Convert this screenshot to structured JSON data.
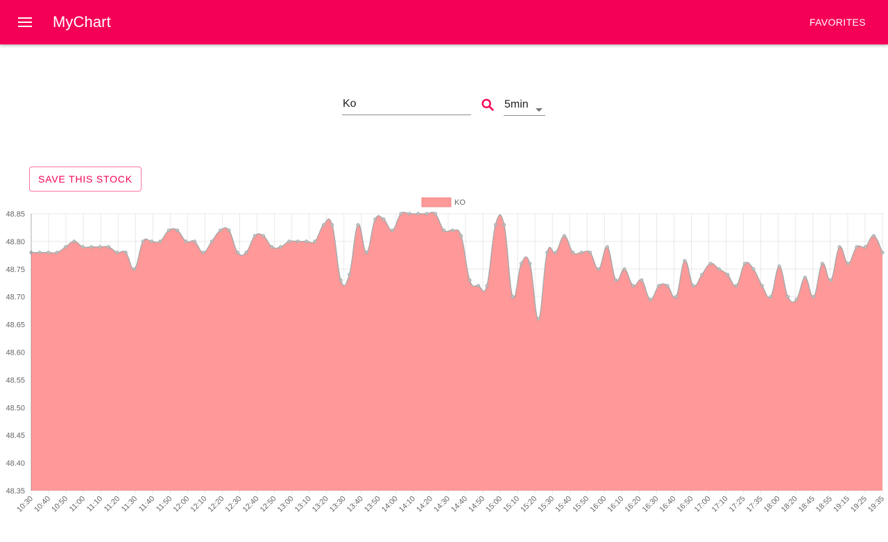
{
  "app": {
    "title": "MyChart",
    "favorites_label": "FAVORITES"
  },
  "colors": {
    "primary": "#f50057",
    "series_fill": "#ff9999",
    "series_line": "#a9a9a9"
  },
  "icons": {
    "menu": "menu-icon",
    "search": "search-icon",
    "dropdown": "arrow-drop-down-icon"
  },
  "search": {
    "value": "Ko",
    "placeholder": ""
  },
  "interval": {
    "selected": "5min"
  },
  "actions": {
    "save_label": "SAVE THIS STOCK"
  },
  "chart_data": {
    "type": "area",
    "title": "",
    "xlabel": "",
    "ylabel": "",
    "legend": {
      "label": "KO",
      "placement": "top"
    },
    "ylim": [
      48.35,
      48.85
    ],
    "y_ticks": [
      "48.85",
      "48.80",
      "48.75",
      "48.70",
      "48.65",
      "48.60",
      "48.55",
      "48.50",
      "48.45",
      "48.40",
      "48.35"
    ],
    "grid": true,
    "x_tick_labels": [
      "10:30",
      "10:40",
      "10:50",
      "11:00",
      "11:10",
      "11:20",
      "11:30",
      "11:40",
      "11:50",
      "12:00",
      "12:10",
      "12:20",
      "12:30",
      "12:40",
      "12:50",
      "13:00",
      "13:10",
      "13:20",
      "13:30",
      "13:40",
      "13:50",
      "14:00",
      "14:10",
      "14:20",
      "14:30",
      "14:40",
      "14:50",
      "15:00",
      "15:10",
      "15:20",
      "15:30",
      "15:40",
      "15:50",
      "16:00",
      "16:10",
      "16:20",
      "16:30",
      "16:40",
      "16:50",
      "17:00",
      "17:10",
      "17:25",
      "17:35",
      "18:00",
      "18:20",
      "18:45",
      "18:55",
      "19:15",
      "19:25",
      "19:35"
    ],
    "series": [
      {
        "name": "KO",
        "values": [
          48.78,
          48.78,
          48.78,
          48.78,
          48.79,
          48.8,
          48.79,
          48.79,
          48.79,
          48.79,
          48.78,
          48.78,
          48.75,
          48.8,
          48.8,
          48.8,
          48.82,
          48.82,
          48.8,
          48.8,
          48.78,
          48.8,
          48.82,
          48.82,
          48.78,
          48.78,
          48.81,
          48.81,
          48.79,
          48.79,
          48.8,
          48.8,
          48.8,
          48.8,
          48.83,
          48.83,
          48.73,
          48.74,
          48.83,
          48.78,
          48.84,
          48.84,
          48.82,
          48.85,
          48.85,
          48.85,
          48.85,
          48.85,
          48.82,
          48.82,
          48.81,
          48.73,
          48.72,
          48.72,
          48.83,
          48.83,
          48.7,
          48.76,
          48.76,
          48.66,
          48.78,
          48.78,
          48.81,
          48.78,
          48.78,
          48.78,
          48.75,
          48.79,
          48.73,
          48.75,
          48.72,
          48.73,
          48.695,
          48.72,
          48.72,
          48.7,
          48.765,
          48.72,
          48.74,
          48.76,
          48.75,
          48.74,
          48.72,
          48.76,
          48.75,
          48.72,
          48.7,
          48.755,
          48.7,
          48.695,
          48.735,
          48.7,
          48.76,
          48.73,
          48.79,
          48.76,
          48.79,
          48.79,
          48.81,
          48.78
        ]
      }
    ]
  }
}
